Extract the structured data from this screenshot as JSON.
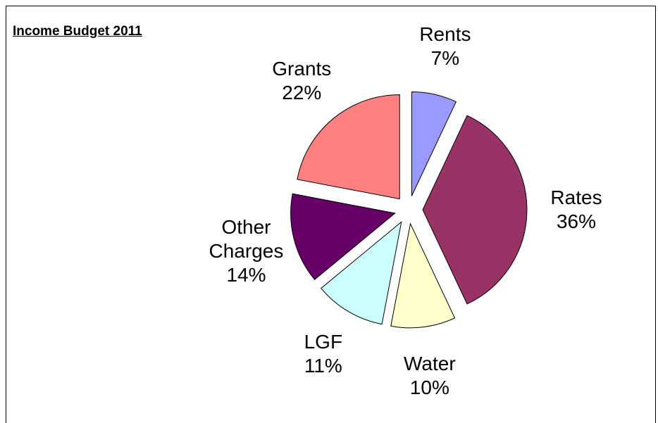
{
  "chart_data": {
    "type": "pie",
    "title": "Income Budget 2011",
    "categories": [
      "Rents",
      "Rates",
      "Water",
      "LGF",
      "Other Charges",
      "Grants"
    ],
    "values": [
      7,
      36,
      10,
      11,
      14,
      22
    ],
    "value_labels": [
      "7%",
      "36%",
      "10%",
      "11%",
      "14%",
      "22%"
    ],
    "colors": [
      "#9999ff",
      "#993366",
      "#ffffcc",
      "#ccffff",
      "#660066",
      "#ff8080"
    ]
  }
}
